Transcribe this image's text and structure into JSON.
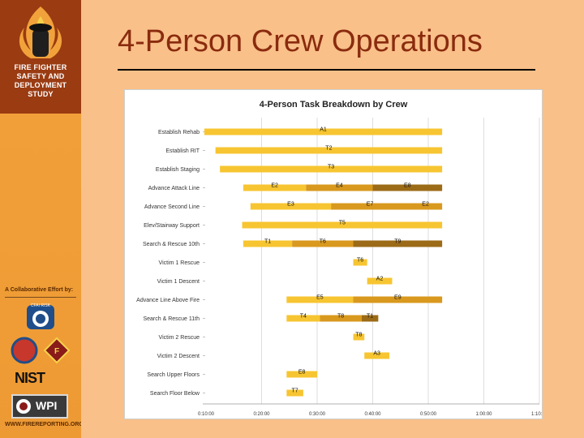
{
  "sidebar": {
    "logo_text": "FIRE FIGHTER SAFETY AND DEPLOYMENT STUDY",
    "collaborative": "A Collaborative Effort by:",
    "cfai_label": "CFAI RISK",
    "nist_label": "NIST",
    "wpi_label": "WPI",
    "website": "WWW.FIREREPORTING.ORG"
  },
  "slide": {
    "title": "4-Person Crew Operations"
  },
  "chart_data": {
    "type": "gantt",
    "title": "4-Person Task Breakdown by Crew",
    "x_ticks": [
      "0:10:00",
      "0:20:00",
      "0:30:00",
      "0:40:00",
      "0:50:00",
      "1:00:00",
      "1:10:00"
    ],
    "x_range_minutes": [
      10,
      70
    ],
    "tasks": [
      {
        "name": "Establish Rehab",
        "segments": [
          {
            "crew": "A1",
            "start": 9.7,
            "end": 52.5,
            "shade": "light"
          }
        ]
      },
      {
        "name": "Establish RIT",
        "segments": [
          {
            "crew": "T2",
            "start": 11.7,
            "end": 52.5,
            "shade": "light"
          }
        ]
      },
      {
        "name": "Establish Staging",
        "segments": [
          {
            "crew": "T3",
            "start": 12.5,
            "end": 52.5,
            "shade": "light"
          }
        ]
      },
      {
        "name": "Advance Attack Line",
        "segments": [
          {
            "crew": "E2",
            "start": 16.7,
            "end": 28.0,
            "shade": "light"
          },
          {
            "crew": "E4",
            "start": 28.0,
            "end": 40.0,
            "shade": "mid"
          },
          {
            "crew": "E8",
            "start": 40.0,
            "end": 52.5,
            "shade": "dark"
          }
        ]
      },
      {
        "name": "Advance Second Line",
        "segments": [
          {
            "crew": "E3",
            "start": 18.0,
            "end": 32.5,
            "shade": "light"
          },
          {
            "crew": "E7",
            "start": 32.5,
            "end": 46.5,
            "shade": "mid"
          },
          {
            "crew": "E2",
            "start": 46.5,
            "end": 52.5,
            "shade": "mid"
          }
        ]
      },
      {
        "name": "Elev/Stairway Support",
        "segments": [
          {
            "crew": "T5",
            "start": 16.5,
            "end": 52.5,
            "shade": "light"
          }
        ]
      },
      {
        "name": "Search & Rescue 10th",
        "segments": [
          {
            "crew": "T1",
            "start": 16.7,
            "end": 25.5,
            "shade": "light"
          },
          {
            "crew": "T6",
            "start": 25.5,
            "end": 36.5,
            "shade": "mid"
          },
          {
            "crew": "T9",
            "start": 36.5,
            "end": 52.5,
            "shade": "dark"
          }
        ]
      },
      {
        "name": "Victim 1 Rescue",
        "segments": [
          {
            "crew": "T6",
            "start": 36.5,
            "end": 39.0,
            "shade": "light"
          }
        ]
      },
      {
        "name": "Victim 1 Descent",
        "segments": [
          {
            "crew": "A2",
            "start": 39.0,
            "end": 43.5,
            "shade": "light"
          }
        ]
      },
      {
        "name": "Advance Line Above Fire",
        "segments": [
          {
            "crew": "E5",
            "start": 24.5,
            "end": 36.5,
            "shade": "light"
          },
          {
            "crew": "E9",
            "start": 36.5,
            "end": 52.5,
            "shade": "mid"
          }
        ]
      },
      {
        "name": "Search & Rescue 11th",
        "segments": [
          {
            "crew": "T4",
            "start": 24.5,
            "end": 30.5,
            "shade": "light"
          },
          {
            "crew": "T8",
            "start": 30.5,
            "end": 38.0,
            "shade": "mid"
          },
          {
            "crew": "T1",
            "start": 38.0,
            "end": 41.0,
            "shade": "dark"
          }
        ]
      },
      {
        "name": "Victim 2 Rescue",
        "segments": [
          {
            "crew": "T8",
            "start": 36.5,
            "end": 38.5,
            "shade": "light"
          }
        ]
      },
      {
        "name": "Victim 2 Descent",
        "segments": [
          {
            "crew": "A3",
            "start": 38.5,
            "end": 43.0,
            "shade": "light"
          }
        ]
      },
      {
        "name": "Search Upper Floors",
        "segments": [
          {
            "crew": "E8",
            "start": 24.5,
            "end": 30.0,
            "shade": "light"
          }
        ]
      },
      {
        "name": "Search Floor Below",
        "segments": [
          {
            "crew": "T7",
            "start": 24.5,
            "end": 27.5,
            "shade": "light"
          }
        ]
      }
    ],
    "colors": {
      "light": "#f7c531",
      "mid": "#d9991e",
      "dark": "#9c6b17",
      "grid": "#d6d6d6"
    }
  }
}
